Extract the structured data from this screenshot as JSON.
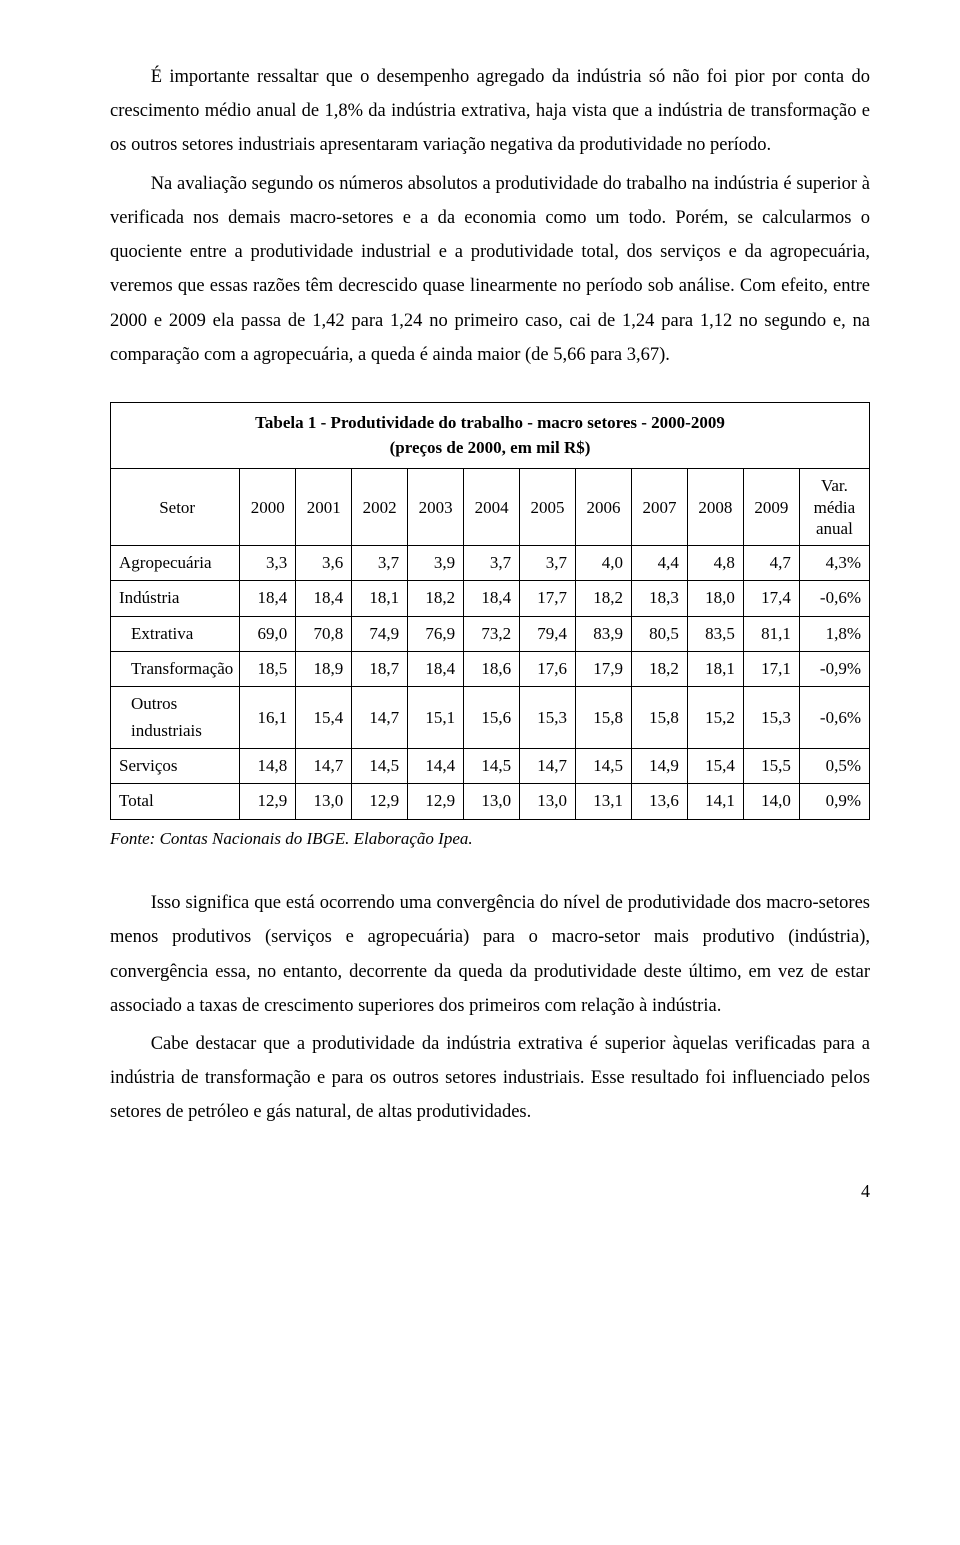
{
  "paragraphs": {
    "p1": "É importante ressaltar que o desempenho agregado da indústria só não foi pior por conta do crescimento médio anual de 1,8% da indústria extrativa, haja vista que a indústria de transformação e os outros setores industriais apresentaram variação negativa da produtividade no período.",
    "p2": "Na avaliação segundo os números absolutos a produtividade do trabalho na indústria é superior à verificada nos demais macro-setores e a da economia como um todo. Porém, se calcularmos o quociente entre a produtividade industrial e a produtividade total, dos serviços e da agropecuária, veremos que essas razões têm decrescido quase linearmente no período sob análise. Com efeito, entre 2000 e 2009 ela passa de 1,42 para 1,24 no primeiro caso, cai de 1,24 para 1,12 no segundo e, na comparação com a agropecuária, a queda é ainda maior (de 5,66 para 3,67).",
    "p3": "Isso significa que está ocorrendo uma convergência do nível de produtividade dos macro-setores menos produtivos (serviços e agropecuária) para o macro-setor mais produtivo (indústria), convergência essa, no entanto, decorrente da queda da produtividade deste último, em vez de estar associado a taxas de crescimento superiores dos primeiros com relação à indústria.",
    "p4": "Cabe destacar que a produtividade da indústria extrativa é superior àquelas verificadas para a indústria de transformação e para os outros setores industriais. Esse resultado foi influenciado pelos setores de petróleo e gás natural, de altas produtividades."
  },
  "table": {
    "title_line1": "Tabela 1 - Produtividade do trabalho - macro setores - 2000-2009",
    "title_line2": "(preços de 2000, em mil R$)",
    "columns": [
      "Setor",
      "2000",
      "2001",
      "2002",
      "2003",
      "2004",
      "2005",
      "2006",
      "2007",
      "2008",
      "2009",
      "Var. média anual"
    ],
    "rows": [
      {
        "label": "Agropecuária",
        "indent": false,
        "cells": [
          "3,3",
          "3,6",
          "3,7",
          "3,9",
          "3,7",
          "3,7",
          "4,0",
          "4,4",
          "4,8",
          "4,7",
          "4,3%"
        ]
      },
      {
        "label": "Indústria",
        "indent": false,
        "cells": [
          "18,4",
          "18,4",
          "18,1",
          "18,2",
          "18,4",
          "17,7",
          "18,2",
          "18,3",
          "18,0",
          "17,4",
          "-0,6%"
        ]
      },
      {
        "label": "Extrativa",
        "indent": true,
        "cells": [
          "69,0",
          "70,8",
          "74,9",
          "76,9",
          "73,2",
          "79,4",
          "83,9",
          "80,5",
          "83,5",
          "81,1",
          "1,8%"
        ]
      },
      {
        "label": "Transformação",
        "indent": true,
        "cells": [
          "18,5",
          "18,9",
          "18,7",
          "18,4",
          "18,6",
          "17,6",
          "17,9",
          "18,2",
          "18,1",
          "17,1",
          "-0,9%"
        ]
      },
      {
        "label": "Outros industriais",
        "indent": true,
        "cells": [
          "16,1",
          "15,4",
          "14,7",
          "15,1",
          "15,6",
          "15,3",
          "15,8",
          "15,8",
          "15,2",
          "15,3",
          "-0,6%"
        ]
      },
      {
        "label": "Serviços",
        "indent": false,
        "cells": [
          "14,8",
          "14,7",
          "14,5",
          "14,4",
          "14,5",
          "14,7",
          "14,5",
          "14,9",
          "15,4",
          "15,5",
          "0,5%"
        ]
      },
      {
        "label": "Total",
        "indent": false,
        "cells": [
          "12,9",
          "13,0",
          "12,9",
          "12,9",
          "13,0",
          "13,0",
          "13,1",
          "13,6",
          "14,1",
          "14,0",
          "0,9%"
        ]
      }
    ],
    "source": "Fonte: Contas Nacionais do IBGE. Elaboração Ipea."
  },
  "page_number": "4"
}
